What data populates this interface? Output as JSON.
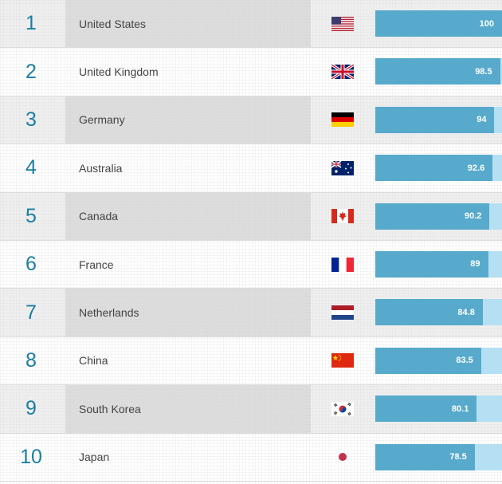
{
  "rankings": [
    {
      "rank": "1",
      "country": "United States",
      "score": "100",
      "score_value": 100,
      "flag": "usa-flag-icon"
    },
    {
      "rank": "2",
      "country": "United Kingdom",
      "score": "98.5",
      "score_value": 98.5,
      "flag": "uk-flag-icon"
    },
    {
      "rank": "3",
      "country": "Germany",
      "score": "94",
      "score_value": 94,
      "flag": "germany-flag-icon"
    },
    {
      "rank": "4",
      "country": "Australia",
      "score": "92.6",
      "score_value": 92.6,
      "flag": "australia-flag-icon"
    },
    {
      "rank": "5",
      "country": "Canada",
      "score": "90.2",
      "score_value": 90.2,
      "flag": "canada-flag-icon"
    },
    {
      "rank": "6",
      "country": "France",
      "score": "89",
      "score_value": 89,
      "flag": "france-flag-icon"
    },
    {
      "rank": "7",
      "country": "Netherlands",
      "score": "84.8",
      "score_value": 84.8,
      "flag": "netherlands-flag-icon"
    },
    {
      "rank": "8",
      "country": "China",
      "score": "83.5",
      "score_value": 83.5,
      "flag": "china-flag-icon"
    },
    {
      "rank": "9",
      "country": "South Korea",
      "score": "80.1",
      "score_value": 80.1,
      "flag": "south-korea-flag-icon"
    },
    {
      "rank": "10",
      "country": "Japan",
      "score": "78.5",
      "score_value": 78.5,
      "flag": "japan-flag-icon"
    }
  ],
  "score_max": 100,
  "colors": {
    "rank_text": "#1b7ea3",
    "bar_fill": "#57aacc",
    "bar_track": "#b5e0f3"
  }
}
